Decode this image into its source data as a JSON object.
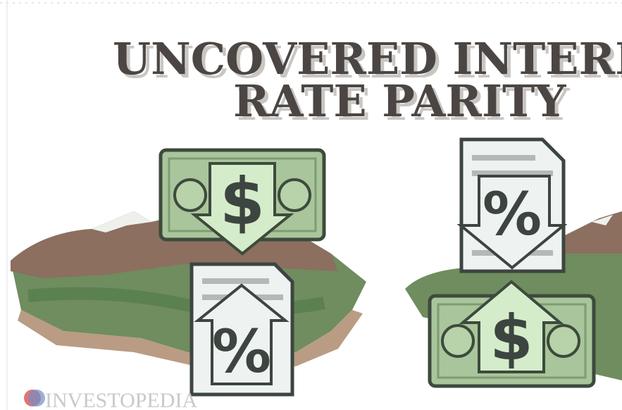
{
  "title": {
    "line1": "UNCOVERED INTERE",
    "line2": "RATE PARITY"
  },
  "left": {
    "bill_symbol": "$",
    "document_symbol": "%"
  },
  "right": {
    "document_symbol": "%",
    "bill_symbol": "$"
  },
  "logo": "INVESTOPEDIA"
}
